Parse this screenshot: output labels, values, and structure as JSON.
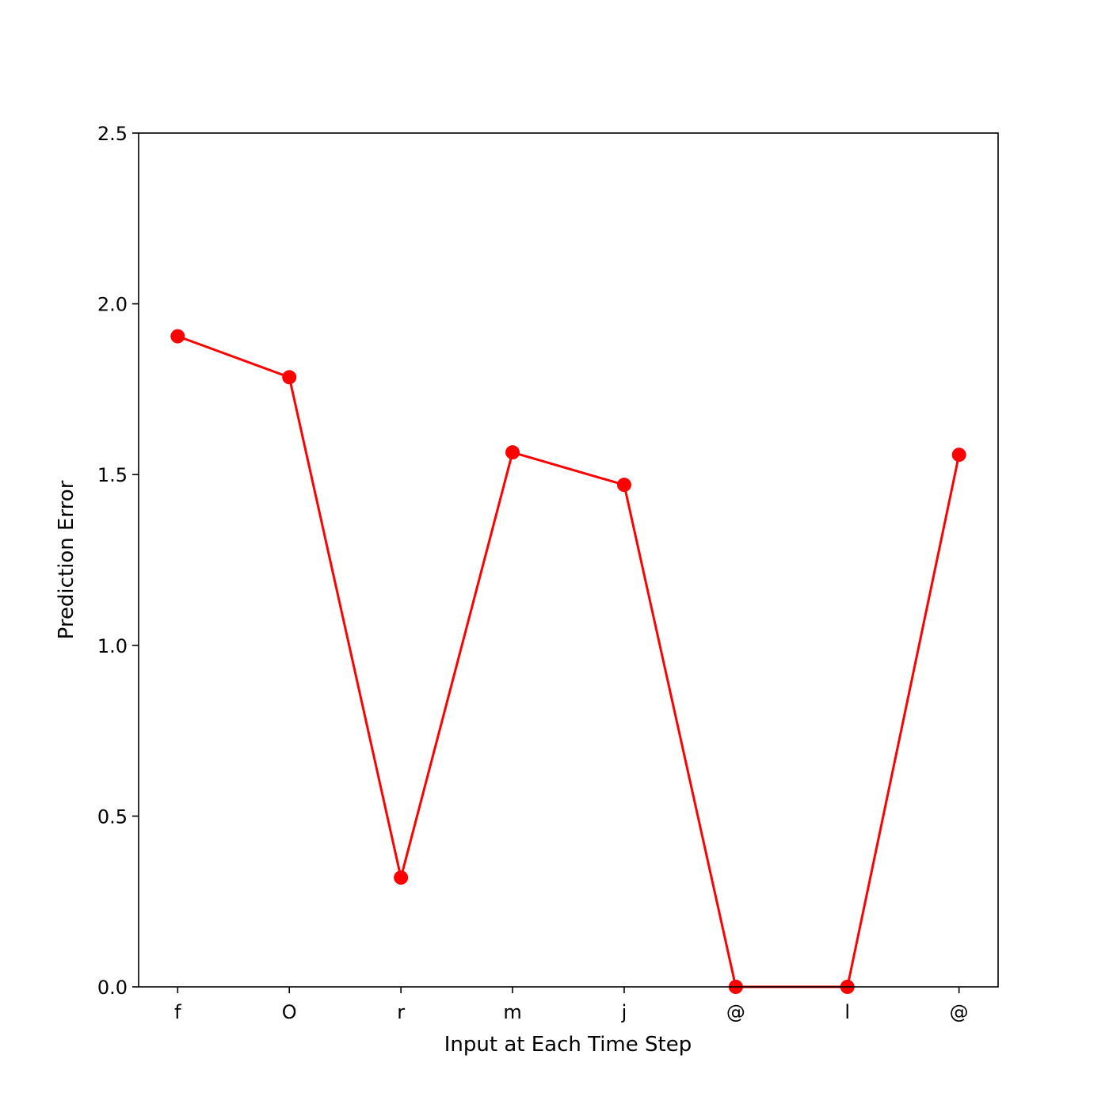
{
  "chart_data": {
    "type": "line",
    "title": "",
    "xlabel": "Input at Each Time Step",
    "ylabel": "Prediction Error",
    "categories": [
      "f",
      "O",
      "r",
      "m",
      "j",
      "@",
      "l",
      "@"
    ],
    "series": [
      {
        "values": [
          1.905,
          1.785,
          0.32,
          1.565,
          1.47,
          0.0,
          0.0,
          1.558
        ],
        "color": "#ff0000",
        "marker": "circle"
      }
    ],
    "ylim": [
      0,
      2.5
    ],
    "yticks": [
      0.0,
      0.5,
      1.0,
      1.5,
      2.0,
      2.5
    ],
    "ytick_labels": [
      "0.0",
      "0.5",
      "1.0",
      "1.5",
      "2.0",
      "2.5"
    ],
    "grid": false,
    "legend": "none"
  }
}
